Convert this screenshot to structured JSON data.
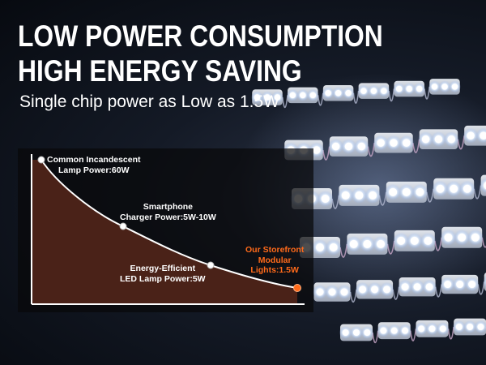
{
  "headline": {
    "line1": "LOW POWER CONSUMPTION",
    "line2": "HIGH ENERGY SAVING",
    "subtitle": "Single chip power as Low as 1.5W"
  },
  "chart_data": {
    "type": "line",
    "title": "",
    "xlabel": "",
    "ylabel": "",
    "grid": false,
    "legend": "none",
    "points": [
      {
        "label_line1": "Common Incandescent",
        "label_line2": "Lamp Power:60W",
        "value": 60
      },
      {
        "label_line1": "Smartphone",
        "label_line2": "Charger Power:5W-10W",
        "value": "5-10"
      },
      {
        "label_line1": "Energy-Efficient",
        "label_line2": "LED Lamp Power:5W",
        "value": 5
      },
      {
        "label_line1": "Our Storefront",
        "label_line2": "Modular",
        "label_line3": "Lights:1.5W",
        "value": 1.5
      }
    ]
  },
  "colors": {
    "curve_fill": "#4a2218",
    "curve_line": "#ffffff",
    "highlight": "#ff6a1a",
    "text": "#ffffff"
  },
  "icons": {
    "background": "led-module-strip-photo"
  }
}
